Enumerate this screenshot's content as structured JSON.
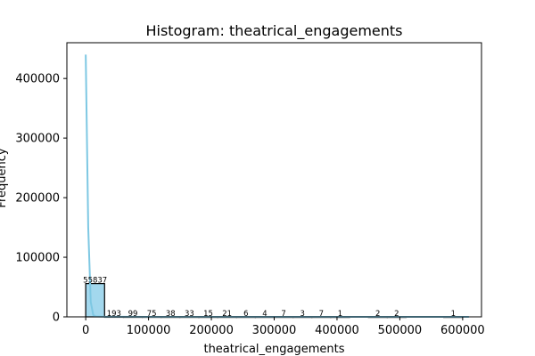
{
  "chart_data": {
    "type": "bar",
    "title": "Histogram: theatrical_engagements",
    "xlabel": "theatrical_engagements",
    "ylabel": "Frequency",
    "xlim": [
      -30000,
      630000
    ],
    "ylim": [
      0,
      460000
    ],
    "x_ticks": [
      0,
      100000,
      200000,
      300000,
      400000,
      500000,
      600000
    ],
    "y_ticks": [
      0,
      100000,
      200000,
      300000,
      400000
    ],
    "bins": [
      {
        "start": 0,
        "end": 30000,
        "value": 55837,
        "label": "55837"
      },
      {
        "start": 30000,
        "end": 60000,
        "value": 193,
        "label": "193"
      },
      {
        "start": 60000,
        "end": 90000,
        "value": 99,
        "label": "99"
      },
      {
        "start": 90000,
        "end": 120000,
        "value": 75,
        "label": "75"
      },
      {
        "start": 120000,
        "end": 150000,
        "value": 38,
        "label": "38"
      },
      {
        "start": 150000,
        "end": 180000,
        "value": 33,
        "label": "33"
      },
      {
        "start": 180000,
        "end": 210000,
        "value": 15,
        "label": "15"
      },
      {
        "start": 210000,
        "end": 240000,
        "value": 21,
        "label": "21"
      },
      {
        "start": 240000,
        "end": 270000,
        "value": 6,
        "label": "6"
      },
      {
        "start": 270000,
        "end": 300000,
        "value": 4,
        "label": "4"
      },
      {
        "start": 300000,
        "end": 330000,
        "value": 7,
        "label": "7"
      },
      {
        "start": 330000,
        "end": 360000,
        "value": 3,
        "label": "3"
      },
      {
        "start": 360000,
        "end": 390000,
        "value": 7,
        "label": "7"
      },
      {
        "start": 390000,
        "end": 420000,
        "value": 1,
        "label": "1"
      },
      {
        "start": 450000,
        "end": 480000,
        "value": 2,
        "label": "2"
      },
      {
        "start": 480000,
        "end": 510000,
        "value": 2,
        "label": "2"
      },
      {
        "start": 570000,
        "end": 600000,
        "value": 1,
        "label": "1"
      }
    ],
    "kde_line": {
      "x": [
        0,
        4000,
        8000,
        12000,
        16000,
        30000,
        60000,
        100000,
        200000,
        300000,
        400000,
        500000,
        600000,
        610000
      ],
      "y": [
        440000,
        150000,
        25000,
        3000,
        800,
        200,
        100,
        60,
        25,
        10,
        5,
        3,
        1,
        0
      ]
    },
    "colors": {
      "bar_fill": "#a3d8ee",
      "bar_edge": "#000000",
      "kde": "#7ec8e3",
      "axes": "#000000"
    },
    "grid": false,
    "legend": "none"
  }
}
